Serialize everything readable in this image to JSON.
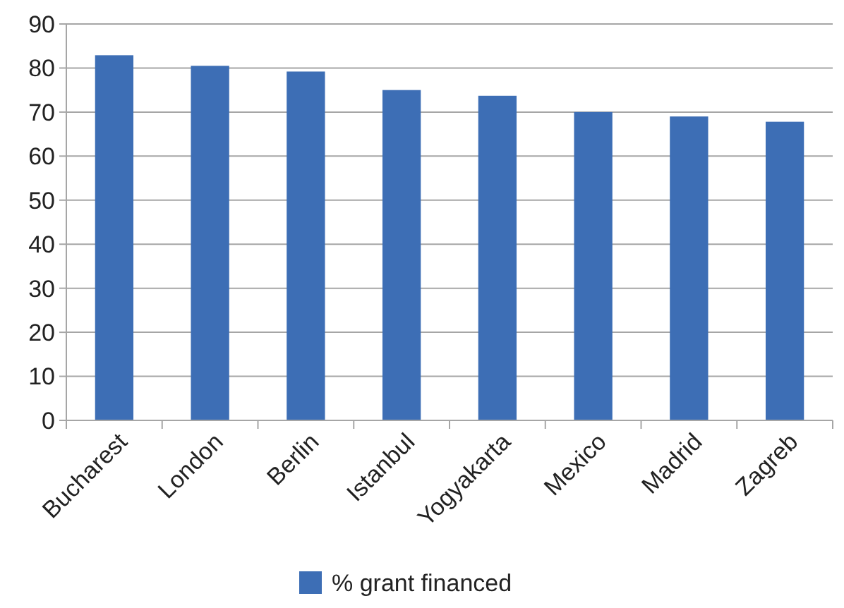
{
  "chart_data": {
    "type": "bar",
    "categories": [
      "Bucharest",
      "London",
      "Berlin",
      "Istanbul",
      "Yogyakarta",
      "Mexico",
      "Madrid",
      "Zagreb"
    ],
    "series": [
      {
        "name": "% grant financed",
        "color": "#3d6eb5",
        "values": [
          82.9,
          80.5,
          79.2,
          75.0,
          73.7,
          70.0,
          69.0,
          67.8
        ]
      }
    ],
    "ylim": [
      0,
      90
    ],
    "yticks": [
      0,
      10,
      20,
      30,
      40,
      50,
      60,
      70,
      80,
      90
    ],
    "grid": "y",
    "legend": "bottom"
  }
}
